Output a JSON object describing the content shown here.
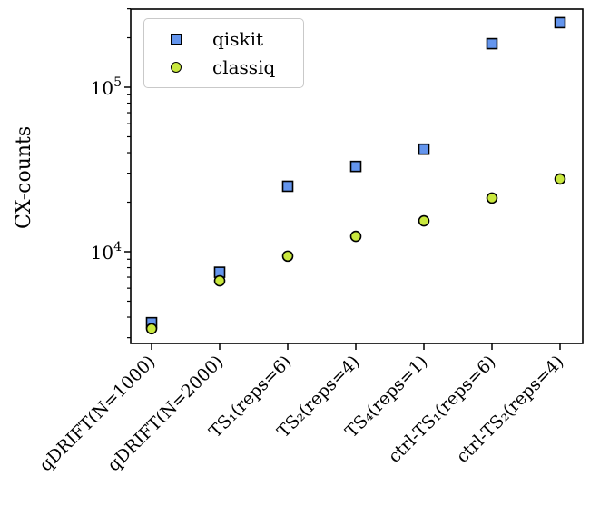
{
  "chart_data": {
    "type": "scatter",
    "title": "",
    "xlabel": "",
    "ylabel": "CX-counts",
    "yscale": "log",
    "ylim": [
      2700,
      300000
    ],
    "grid": false,
    "legend_position": "upper left",
    "categories": [
      "qDRIFT(N=1000)",
      "qDRIFT(N=2000)",
      "TS₁(reps=6)",
      "TS₂(reps=4)",
      "TS₄(reps=1)",
      "ctrl-TS₁(reps=6)",
      "ctrl-TS₂(reps=4)"
    ],
    "series": [
      {
        "name": "qiskit",
        "marker": "square",
        "color": "#6495ed",
        "edge_color": "#000000",
        "values": [
          3700,
          7500,
          25000,
          33000,
          42000,
          184000,
          247000
        ]
      },
      {
        "name": "classiq",
        "marker": "circle",
        "color": "#c9e83e",
        "edge_color": "#000000",
        "values": [
          3400,
          6650,
          9400,
          12400,
          15400,
          21200,
          27700
        ]
      }
    ],
    "y_ticks": [
      {
        "base": "10",
        "exp": "4",
        "value": 10000
      },
      {
        "base": "10",
        "exp": "5",
        "value": 100000
      }
    ]
  }
}
